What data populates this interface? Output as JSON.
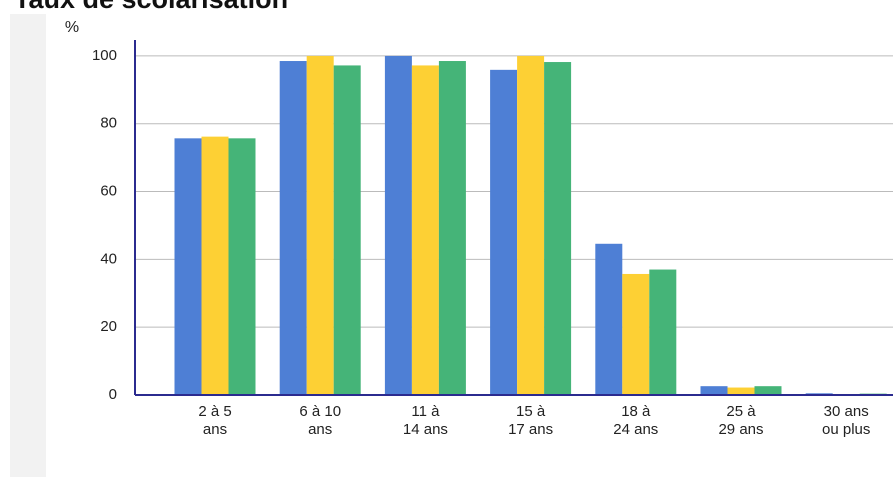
{
  "chart_data": {
    "type": "bar",
    "title": "Taux de scolarisation",
    "ylabel": "%",
    "categories": [
      "2 à 5\nans",
      "6 à 10\nans",
      "11 à\n14 ans",
      "15 à\n17 ans",
      "18 à\n24 ans",
      "25 à\n29 ans",
      "30 ans\nou plus"
    ],
    "series": [
      {
        "color": "#4e7fd5",
        "values": [
          75.7,
          98.5,
          100,
          95.9,
          44.6,
          2.6,
          0.5
        ]
      },
      {
        "color": "#fdd034",
        "values": [
          76.2,
          100,
          97.2,
          100,
          35.7,
          2.2,
          0.3
        ]
      },
      {
        "color": "#45b478",
        "values": [
          75.7,
          97.2,
          98.5,
          98.2,
          37.0,
          2.6,
          0.4
        ]
      }
    ],
    "ylim": [
      0,
      104.7
    ],
    "yticks": [
      0,
      20,
      40,
      60,
      80,
      100
    ],
    "grid": true
  }
}
